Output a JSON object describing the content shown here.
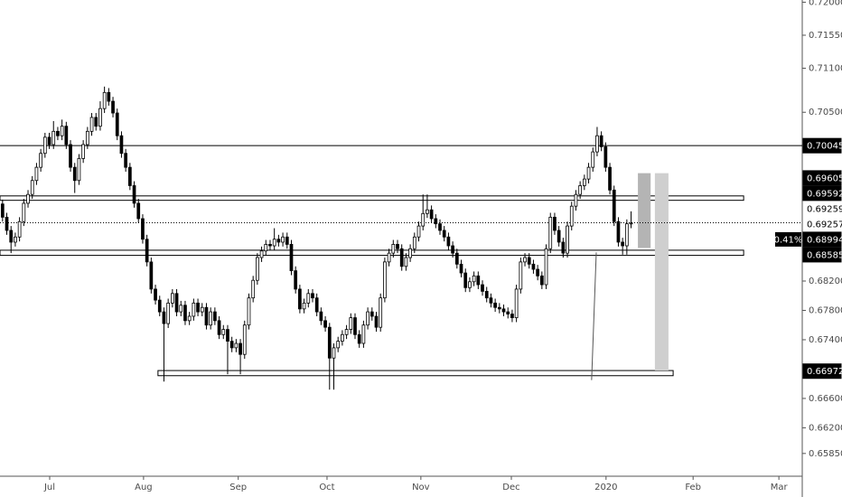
{
  "chart_data": {
    "type": "candlestick",
    "bull_color": "#ffffff",
    "bear_color": "#000000",
    "xlim": [
      -0.6,
      188.3
    ],
    "ylim": [
      0.6554,
      0.7203
    ],
    "xticks": [
      {
        "value": 11.1,
        "label": "Jul"
      },
      {
        "value": 33.2,
        "label": "Aug"
      },
      {
        "value": 55.5,
        "label": "Sep"
      },
      {
        "value": 76.4,
        "label": "Oct"
      },
      {
        "value": 98.5,
        "label": "Nov"
      },
      {
        "value": 119.8,
        "label": "Dec"
      },
      {
        "value": 142.1,
        "label": "2020"
      },
      {
        "value": 162.6,
        "label": "Feb"
      },
      {
        "value": 182.8,
        "label": "Mar"
      }
    ],
    "yticks": [
      {
        "value": 0.72,
        "label": "0.72000"
      },
      {
        "value": 0.7155,
        "label": "0.71550"
      },
      {
        "value": 0.711,
        "label": "0.71100"
      },
      {
        "value": 0.705,
        "label": "0.70500"
      },
      {
        "value": 0.682,
        "label": "0.68200"
      },
      {
        "value": 0.678,
        "label": "0.67800"
      },
      {
        "value": 0.674,
        "label": "0.67400"
      },
      {
        "value": 0.666,
        "label": "0.66600"
      },
      {
        "value": 0.662,
        "label": "0.66200"
      },
      {
        "value": 0.6585,
        "label": "0.65850"
      }
    ],
    "horizontal_lines": [
      0.70045
    ],
    "zones": [
      {
        "from": -0.6,
        "to": 174.5,
        "low": 0.693,
        "high": 0.6936
      },
      {
        "from": -0.6,
        "to": 174.5,
        "low": 0.6855,
        "high": 0.6862
      },
      {
        "from": 36.6,
        "to": 157.9,
        "low": 0.6691,
        "high": 0.6698
      }
    ],
    "projections": [
      {
        "from": 149.6,
        "to": 152.6,
        "high": 0.6967,
        "low": 0.6865,
        "color": "#b4b4b4"
      },
      {
        "from": 153.6,
        "to": 156.8,
        "high": 0.6967,
        "low": 0.6698,
        "color": "#cfcfcf"
      }
    ],
    "trend_line": {
      "x": [
        138.7,
        139.8
      ],
      "y": [
        0.6685,
        0.6859
      ]
    },
    "price_labels": [
      {
        "value": 0.70045,
        "dark": true
      },
      {
        "value": 0.69605,
        "dark": true
      },
      {
        "value": 0.69592,
        "dark": true
      },
      {
        "value": 0.69259,
        "dark": false
      },
      {
        "value": 0.69257,
        "dark": false
      },
      {
        "value": 0.68585,
        "dark": true
      },
      {
        "value": 0.66972,
        "dark": true
      }
    ],
    "last_price": {
      "value": 0.68994,
      "change": 0.41,
      "change_label": "0.41%"
    },
    "candles": [
      [
        0.6925,
        0.6931,
        0.6901,
        0.6907
      ],
      [
        0.6907,
        0.6913,
        0.6883,
        0.6889
      ],
      [
        0.6889,
        0.6895,
        0.6858,
        0.6873
      ],
      [
        0.6873,
        0.6886,
        0.6867,
        0.688
      ],
      [
        0.688,
        0.6907,
        0.6874,
        0.6901
      ],
      [
        0.6901,
        0.6932,
        0.6895,
        0.6926
      ],
      [
        0.6926,
        0.6944,
        0.692,
        0.6938
      ],
      [
        0.6938,
        0.6963,
        0.6932,
        0.6957
      ],
      [
        0.6957,
        0.6981,
        0.6951,
        0.6975
      ],
      [
        0.6975,
        0.7,
        0.6969,
        0.6994
      ],
      [
        0.6994,
        0.7022,
        0.6988,
        0.7016
      ],
      [
        0.7016,
        0.7022,
        0.7,
        0.7006
      ],
      [
        0.7006,
        0.7038,
        0.7,
        0.7024
      ],
      [
        0.7024,
        0.703,
        0.7012,
        0.7018
      ],
      [
        0.7018,
        0.704,
        0.7012,
        0.7031
      ],
      [
        0.7031,
        0.7037,
        0.7,
        0.7006
      ],
      [
        0.7006,
        0.7012,
        0.6969,
        0.6975
      ],
      [
        0.6975,
        0.6981,
        0.694,
        0.6957
      ],
      [
        0.6957,
        0.6993,
        0.6951,
        0.6987
      ],
      [
        0.6987,
        0.7012,
        0.6981,
        0.7006
      ],
      [
        0.7006,
        0.703,
        0.7,
        0.7024
      ],
      [
        0.7024,
        0.7049,
        0.7018,
        0.7043
      ],
      [
        0.7043,
        0.7049,
        0.7025,
        0.7031
      ],
      [
        0.7031,
        0.7065,
        0.7025,
        0.7055
      ],
      [
        0.7055,
        0.7085,
        0.7049,
        0.7077
      ],
      [
        0.7077,
        0.7083,
        0.7059,
        0.7065
      ],
      [
        0.7065,
        0.7071,
        0.7043,
        0.7049
      ],
      [
        0.7049,
        0.7055,
        0.7012,
        0.7018
      ],
      [
        0.7018,
        0.7024,
        0.6988,
        0.6994
      ],
      [
        0.6994,
        0.7,
        0.6969,
        0.6975
      ],
      [
        0.6975,
        0.6981,
        0.6944,
        0.695
      ],
      [
        0.695,
        0.6956,
        0.692,
        0.6926
      ],
      [
        0.6926,
        0.6932,
        0.6899,
        0.6905
      ],
      [
        0.6905,
        0.6911,
        0.6871,
        0.6877
      ],
      [
        0.6877,
        0.6883,
        0.684,
        0.6846
      ],
      [
        0.6846,
        0.6852,
        0.6803,
        0.6809
      ],
      [
        0.6809,
        0.6815,
        0.6788,
        0.6794
      ],
      [
        0.6794,
        0.68,
        0.6772,
        0.6778
      ],
      [
        0.6778,
        0.6784,
        0.6683,
        0.6762
      ],
      [
        0.6762,
        0.6796,
        0.6756,
        0.679
      ],
      [
        0.679,
        0.6809,
        0.6784,
        0.6803
      ],
      [
        0.6803,
        0.6809,
        0.6772,
        0.6778
      ],
      [
        0.6778,
        0.6793,
        0.6772,
        0.6787
      ],
      [
        0.6787,
        0.6793,
        0.676,
        0.6766
      ],
      [
        0.6766,
        0.6778,
        0.676,
        0.6772
      ],
      [
        0.6772,
        0.6796,
        0.6766,
        0.679
      ],
      [
        0.679,
        0.6796,
        0.6772,
        0.6778
      ],
      [
        0.6778,
        0.679,
        0.6772,
        0.6784
      ],
      [
        0.6784,
        0.679,
        0.6754,
        0.676
      ],
      [
        0.676,
        0.6784,
        0.6754,
        0.6778
      ],
      [
        0.6778,
        0.6784,
        0.676,
        0.6766
      ],
      [
        0.6766,
        0.6772,
        0.6741,
        0.6747
      ],
      [
        0.6747,
        0.676,
        0.6741,
        0.6754
      ],
      [
        0.6754,
        0.676,
        0.6693,
        0.6738
      ],
      [
        0.6738,
        0.6744,
        0.6723,
        0.6729
      ],
      [
        0.6729,
        0.6741,
        0.6723,
        0.6735
      ],
      [
        0.6735,
        0.6741,
        0.6693,
        0.672
      ],
      [
        0.672,
        0.6766,
        0.6714,
        0.676
      ],
      [
        0.676,
        0.6803,
        0.6754,
        0.6797
      ],
      [
        0.6797,
        0.6827,
        0.6791,
        0.6821
      ],
      [
        0.6821,
        0.6858,
        0.6815,
        0.6852
      ],
      [
        0.6852,
        0.6867,
        0.6846,
        0.6861
      ],
      [
        0.6861,
        0.6876,
        0.6855,
        0.687
      ],
      [
        0.687,
        0.6876,
        0.6862,
        0.6868
      ],
      [
        0.6868,
        0.6892,
        0.6862,
        0.6877
      ],
      [
        0.6877,
        0.6883,
        0.6867,
        0.6873
      ],
      [
        0.6873,
        0.6886,
        0.6867,
        0.688
      ],
      [
        0.688,
        0.6886,
        0.6864,
        0.687
      ],
      [
        0.687,
        0.6876,
        0.6828,
        0.6834
      ],
      [
        0.6834,
        0.684,
        0.6803,
        0.6809
      ],
      [
        0.6809,
        0.6815,
        0.6776,
        0.6782
      ],
      [
        0.6782,
        0.6796,
        0.6776,
        0.679
      ],
      [
        0.679,
        0.6809,
        0.6784,
        0.6803
      ],
      [
        0.6803,
        0.6809,
        0.6791,
        0.6797
      ],
      [
        0.6797,
        0.6803,
        0.6772,
        0.6778
      ],
      [
        0.6778,
        0.6784,
        0.676,
        0.6766
      ],
      [
        0.6766,
        0.6772,
        0.6751,
        0.6757
      ],
      [
        0.6757,
        0.6763,
        0.6672,
        0.6715
      ],
      [
        0.6715,
        0.6735,
        0.6672,
        0.6729
      ],
      [
        0.6729,
        0.6744,
        0.6723,
        0.6738
      ],
      [
        0.6738,
        0.6753,
        0.6732,
        0.6747
      ],
      [
        0.6747,
        0.676,
        0.6741,
        0.6754
      ],
      [
        0.6754,
        0.6776,
        0.6748,
        0.677
      ],
      [
        0.677,
        0.6776,
        0.6741,
        0.6747
      ],
      [
        0.6747,
        0.6753,
        0.6729,
        0.6735
      ],
      [
        0.6735,
        0.6766,
        0.6729,
        0.676
      ],
      [
        0.676,
        0.6784,
        0.6754,
        0.6778
      ],
      [
        0.6778,
        0.6784,
        0.6766,
        0.6772
      ],
      [
        0.6772,
        0.6778,
        0.6751,
        0.6757
      ],
      [
        0.6757,
        0.6803,
        0.6751,
        0.6797
      ],
      [
        0.6797,
        0.6852,
        0.6791,
        0.6846
      ],
      [
        0.6846,
        0.6864,
        0.684,
        0.6858
      ],
      [
        0.6858,
        0.6876,
        0.6852,
        0.687
      ],
      [
        0.687,
        0.6876,
        0.6858,
        0.6864
      ],
      [
        0.6864,
        0.687,
        0.6834,
        0.684
      ],
      [
        0.684,
        0.6858,
        0.6834,
        0.6852
      ],
      [
        0.6852,
        0.687,
        0.6846,
        0.6864
      ],
      [
        0.6864,
        0.6886,
        0.6858,
        0.688
      ],
      [
        0.688,
        0.6901,
        0.6874,
        0.6895
      ],
      [
        0.6895,
        0.6938,
        0.6889,
        0.6912
      ],
      [
        0.6912,
        0.6938,
        0.6906,
        0.6917
      ],
      [
        0.6917,
        0.6923,
        0.6899,
        0.6905
      ],
      [
        0.6905,
        0.6911,
        0.6892,
        0.6898
      ],
      [
        0.6898,
        0.6904,
        0.6883,
        0.6889
      ],
      [
        0.6889,
        0.6895,
        0.6874,
        0.688
      ],
      [
        0.688,
        0.6886,
        0.6862,
        0.6868
      ],
      [
        0.6868,
        0.6874,
        0.6852,
        0.6858
      ],
      [
        0.6858,
        0.6864,
        0.6837,
        0.6843
      ],
      [
        0.6843,
        0.6849,
        0.6825,
        0.6831
      ],
      [
        0.6831,
        0.6837,
        0.6805,
        0.6811
      ],
      [
        0.6811,
        0.6825,
        0.6805,
        0.6819
      ],
      [
        0.6819,
        0.6833,
        0.6813,
        0.6827
      ],
      [
        0.6827,
        0.6833,
        0.6809,
        0.6815
      ],
      [
        0.6815,
        0.6821,
        0.68,
        0.6806
      ],
      [
        0.6806,
        0.6812,
        0.6791,
        0.6797
      ],
      [
        0.6797,
        0.6803,
        0.6784,
        0.679
      ],
      [
        0.679,
        0.6796,
        0.6778,
        0.6784
      ],
      [
        0.6784,
        0.679,
        0.6776,
        0.6782
      ],
      [
        0.6782,
        0.6788,
        0.6772,
        0.6778
      ],
      [
        0.6778,
        0.6784,
        0.6769,
        0.6775
      ],
      [
        0.6775,
        0.6781,
        0.6764,
        0.677
      ],
      [
        0.677,
        0.6815,
        0.6764,
        0.6809
      ],
      [
        0.6809,
        0.6852,
        0.6803,
        0.6846
      ],
      [
        0.6846,
        0.6858,
        0.684,
        0.6852
      ],
      [
        0.6852,
        0.6858,
        0.6837,
        0.6843
      ],
      [
        0.6843,
        0.6849,
        0.683,
        0.6836
      ],
      [
        0.6836,
        0.6842,
        0.6821,
        0.6827
      ],
      [
        0.6827,
        0.6833,
        0.6809,
        0.6815
      ],
      [
        0.6815,
        0.687,
        0.6809,
        0.6864
      ],
      [
        0.6864,
        0.6913,
        0.6858,
        0.6907
      ],
      [
        0.6907,
        0.6913,
        0.6883,
        0.6889
      ],
      [
        0.6889,
        0.6895,
        0.6867,
        0.6873
      ],
      [
        0.6873,
        0.6879,
        0.6852,
        0.6858
      ],
      [
        0.6858,
        0.6901,
        0.6852,
        0.6895
      ],
      [
        0.6895,
        0.6928,
        0.6889,
        0.6922
      ],
      [
        0.6922,
        0.6944,
        0.6916,
        0.6938
      ],
      [
        0.6938,
        0.6956,
        0.6932,
        0.695
      ],
      [
        0.695,
        0.6965,
        0.6944,
        0.6959
      ],
      [
        0.6959,
        0.6981,
        0.6953,
        0.6975
      ],
      [
        0.6975,
        0.7002,
        0.6969,
        0.6996
      ],
      [
        0.6996,
        0.703,
        0.699,
        0.7018
      ],
      [
        0.7018,
        0.7024,
        0.6997,
        0.7003
      ],
      [
        0.7003,
        0.7009,
        0.6969,
        0.6975
      ],
      [
        0.6975,
        0.6981,
        0.6938,
        0.6944
      ],
      [
        0.6944,
        0.695,
        0.6895,
        0.6901
      ],
      [
        0.6901,
        0.6907,
        0.6867,
        0.6873
      ],
      [
        0.6873,
        0.6879,
        0.6856,
        0.6868
      ],
      [
        0.6868,
        0.6904,
        0.6856,
        0.6898
      ],
      [
        0.6898,
        0.6915,
        0.6892,
        0.6899
      ]
    ]
  }
}
